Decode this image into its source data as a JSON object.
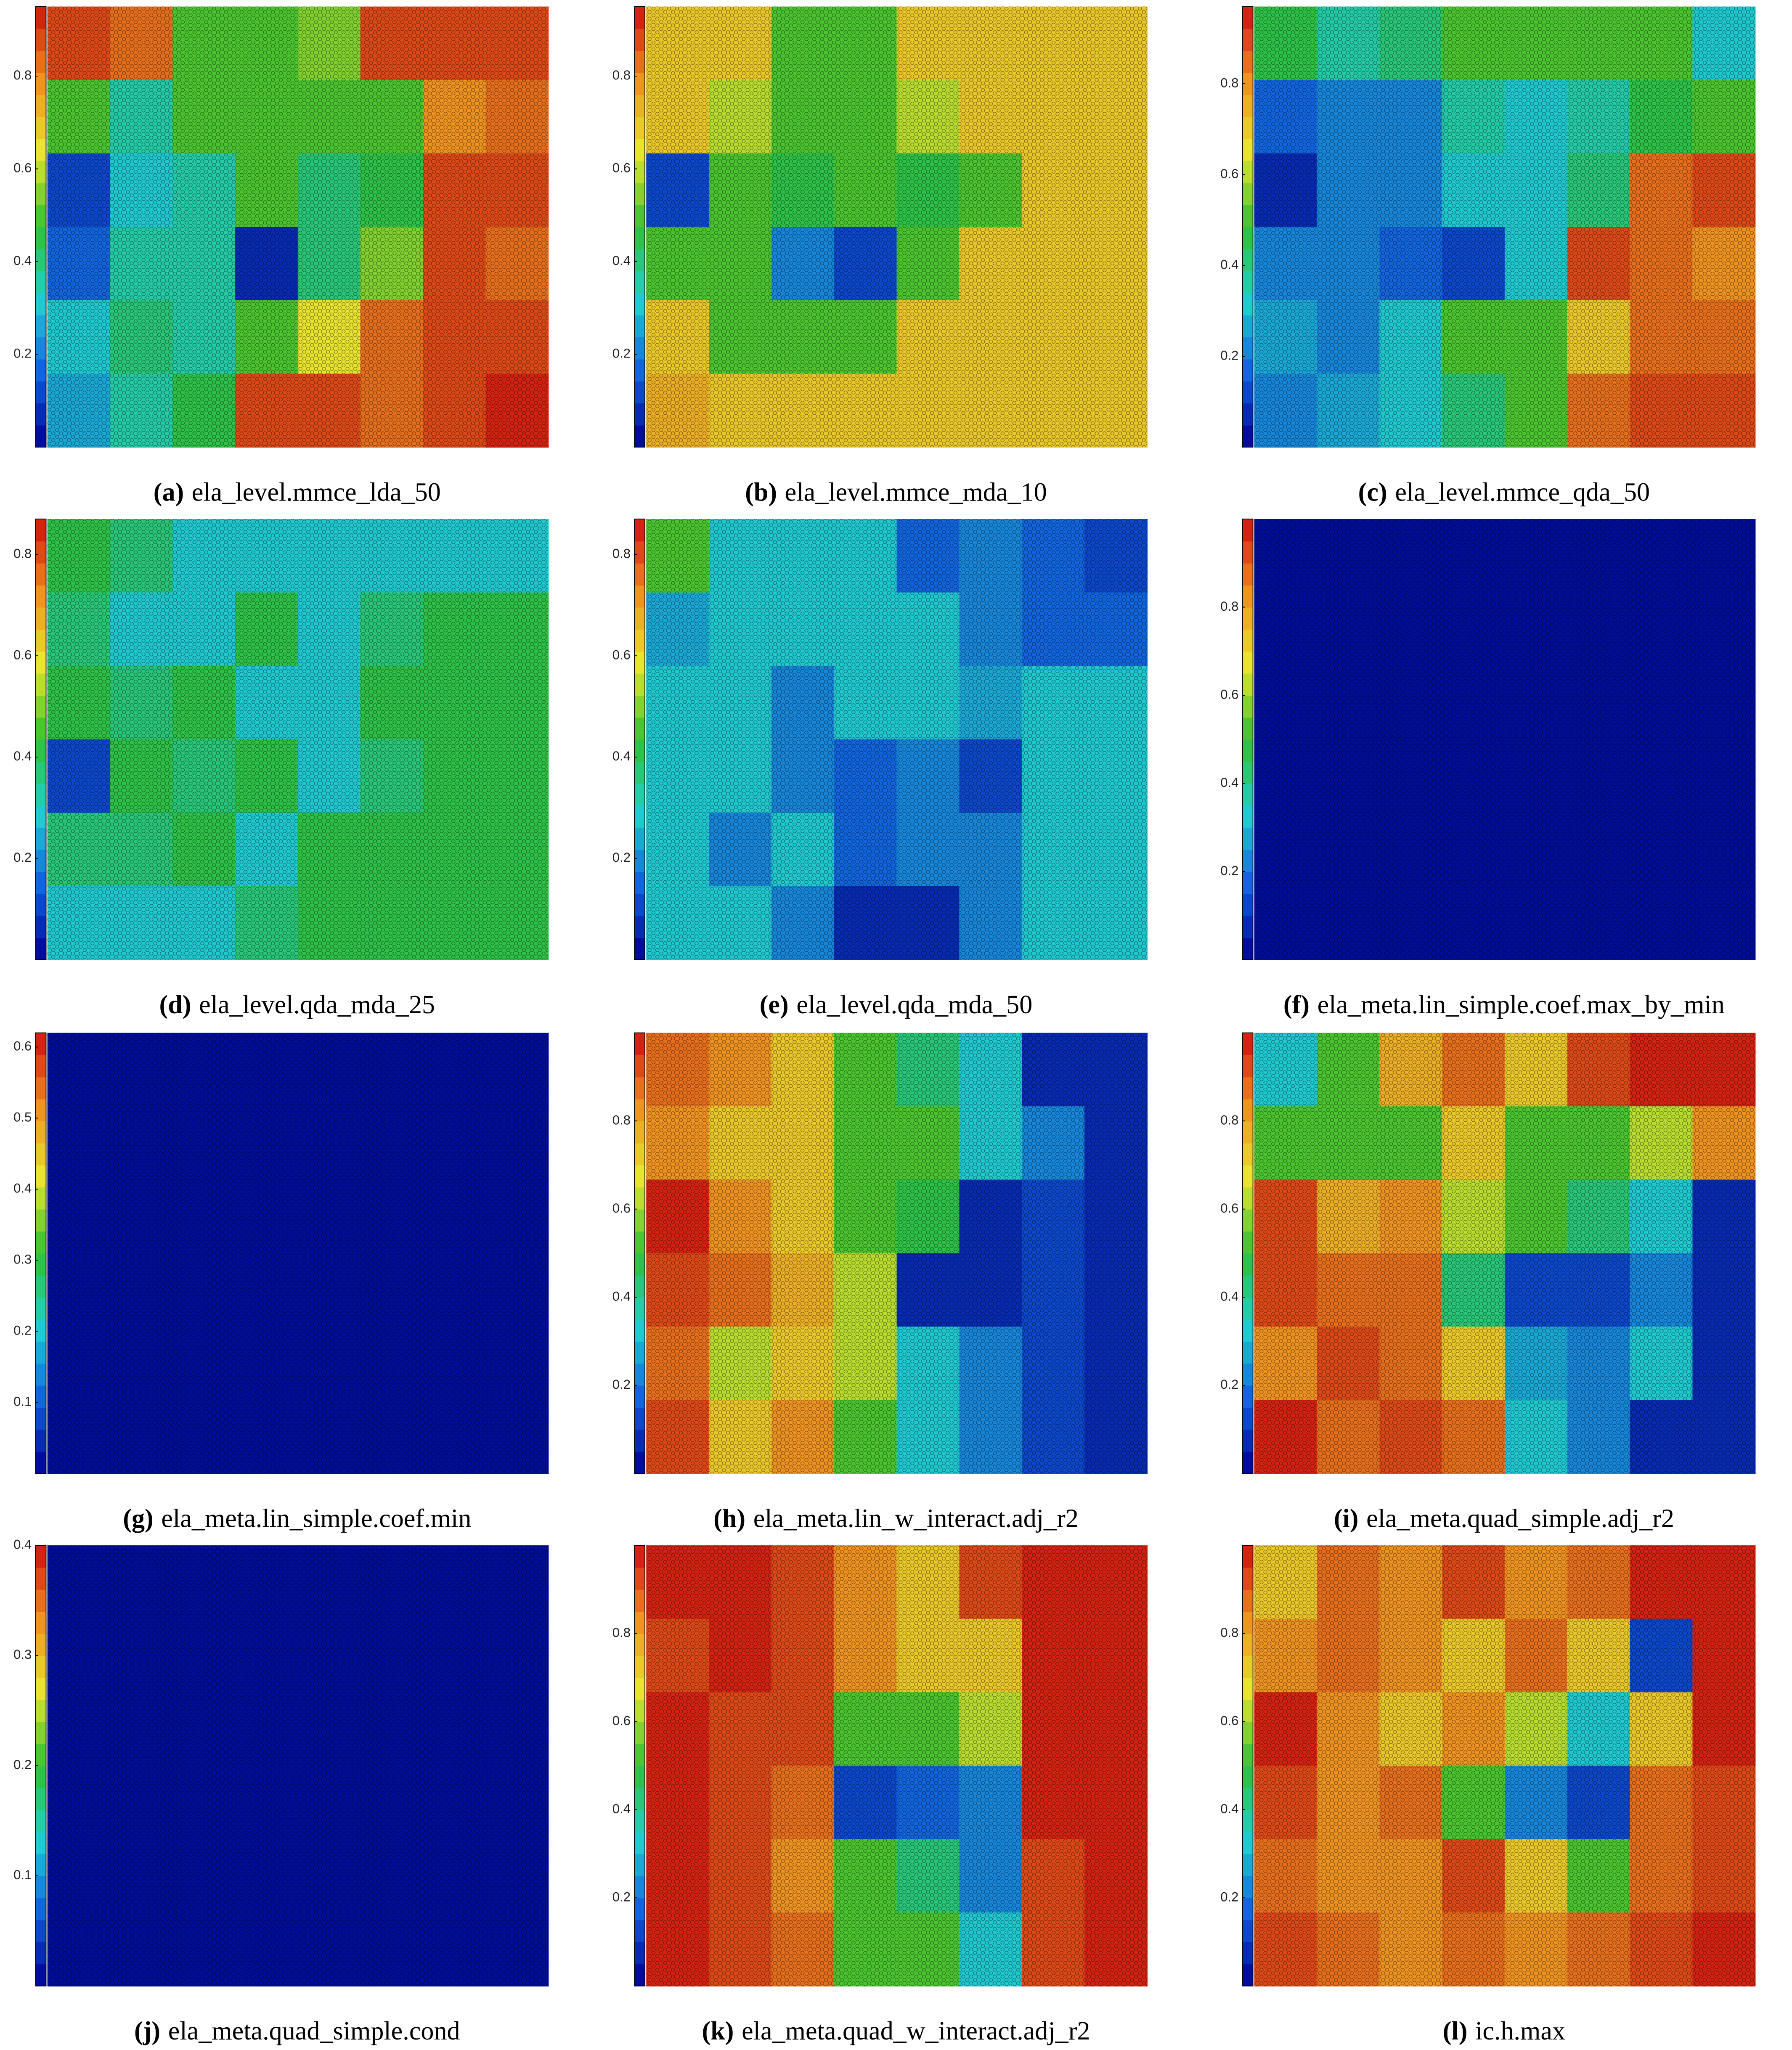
{
  "chart_data": [
    {
      "type": "heatmap",
      "label": "(a)",
      "title": "ela_level.mmce_lda_50",
      "ylim": [
        0,
        0.95
      ],
      "yticks": [
        0.2,
        0.4,
        0.6,
        0.8
      ],
      "color_steps": 20,
      "colormap": [
        "#00008f",
        "#1060e0",
        "#20d0d0",
        "#30c030",
        "#e8e830",
        "#f09020",
        "#d01010"
      ],
      "values": [
        [
          0.9,
          0.85,
          0.5,
          0.5,
          0.55,
          0.9,
          0.9,
          0.9
        ],
        [
          0.5,
          0.35,
          0.5,
          0.5,
          0.5,
          0.5,
          0.8,
          0.85
        ],
        [
          0.1,
          0.3,
          0.35,
          0.5,
          0.4,
          0.45,
          0.9,
          0.9
        ],
        [
          0.15,
          0.35,
          0.35,
          0.05,
          0.4,
          0.55,
          0.9,
          0.85
        ],
        [
          0.3,
          0.4,
          0.35,
          0.5,
          0.65,
          0.85,
          0.9,
          0.9
        ],
        [
          0.25,
          0.35,
          0.45,
          0.9,
          0.9,
          0.85,
          0.9,
          0.95
        ]
      ]
    },
    {
      "type": "heatmap",
      "label": "(b)",
      "title": "ela_level.mmce_mda_10",
      "ylim": [
        0,
        0.95
      ],
      "yticks": [
        0.2,
        0.4,
        0.6,
        0.8
      ],
      "color_steps": 20,
      "colormap": [
        "#00008f",
        "#1060e0",
        "#20d0d0",
        "#30c030",
        "#e8e830",
        "#f09020",
        "#d01010"
      ],
      "values": [
        [
          0.7,
          0.7,
          0.5,
          0.5,
          0.7,
          0.7,
          0.7,
          0.7
        ],
        [
          0.7,
          0.6,
          0.5,
          0.5,
          0.6,
          0.7,
          0.7,
          0.7
        ],
        [
          0.1,
          0.5,
          0.45,
          0.5,
          0.45,
          0.5,
          0.7,
          0.7
        ],
        [
          0.5,
          0.5,
          0.2,
          0.1,
          0.5,
          0.7,
          0.7,
          0.7
        ],
        [
          0.7,
          0.5,
          0.5,
          0.5,
          0.7,
          0.7,
          0.7,
          0.7
        ],
        [
          0.75,
          0.7,
          0.7,
          0.7,
          0.7,
          0.7,
          0.7,
          0.7
        ]
      ]
    },
    {
      "type": "heatmap",
      "label": "(c)",
      "title": "ela_level.mmce_qda_50",
      "ylim": [
        0,
        0.97
      ],
      "yticks": [
        0.2,
        0.4,
        0.6,
        0.8
      ],
      "color_steps": 20,
      "colormap": [
        "#00008f",
        "#1060e0",
        "#20d0d0",
        "#30c030",
        "#e8e830",
        "#f09020",
        "#d01010"
      ],
      "values": [
        [
          0.45,
          0.35,
          0.4,
          0.5,
          0.5,
          0.5,
          0.5,
          0.3
        ],
        [
          0.15,
          0.2,
          0.2,
          0.35,
          0.3,
          0.35,
          0.45,
          0.5
        ],
        [
          0.05,
          0.2,
          0.2,
          0.3,
          0.3,
          0.4,
          0.85,
          0.9
        ],
        [
          0.2,
          0.2,
          0.15,
          0.1,
          0.3,
          0.9,
          0.85,
          0.8
        ],
        [
          0.25,
          0.2,
          0.3,
          0.5,
          0.5,
          0.7,
          0.85,
          0.85
        ],
        [
          0.2,
          0.25,
          0.3,
          0.4,
          0.5,
          0.85,
          0.9,
          0.9
        ]
      ]
    },
    {
      "type": "heatmap",
      "label": "(d)",
      "title": "ela_level.qda_mda_25",
      "ylim": [
        0,
        0.87
      ],
      "yticks": [
        0.2,
        0.4,
        0.6,
        0.8
      ],
      "color_steps": 20,
      "colormap": [
        "#00008f",
        "#1060e0",
        "#20d0d0",
        "#30c030",
        "#e8e830",
        "#f09020",
        "#d01010"
      ],
      "values": [
        [
          0.4,
          0.35,
          0.3,
          0.3,
          0.3,
          0.3,
          0.3,
          0.3
        ],
        [
          0.35,
          0.3,
          0.3,
          0.4,
          0.3,
          0.35,
          0.4,
          0.4
        ],
        [
          0.4,
          0.35,
          0.4,
          0.3,
          0.3,
          0.4,
          0.4,
          0.4
        ],
        [
          0.1,
          0.4,
          0.35,
          0.4,
          0.3,
          0.35,
          0.4,
          0.4
        ],
        [
          0.35,
          0.35,
          0.4,
          0.3,
          0.4,
          0.4,
          0.4,
          0.4
        ],
        [
          0.3,
          0.3,
          0.3,
          0.35,
          0.4,
          0.4,
          0.4,
          0.4
        ]
      ]
    },
    {
      "type": "heatmap",
      "label": "(e)",
      "title": "ela_level.qda_mda_50",
      "ylim": [
        0,
        0.87
      ],
      "yticks": [
        0.2,
        0.4,
        0.6,
        0.8
      ],
      "color_steps": 20,
      "colormap": [
        "#00008f",
        "#1060e0",
        "#20d0d0",
        "#30c030",
        "#e8e830",
        "#f09020",
        "#d01010"
      ],
      "values": [
        [
          0.45,
          0.3,
          0.3,
          0.3,
          0.15,
          0.2,
          0.15,
          0.1
        ],
        [
          0.25,
          0.3,
          0.3,
          0.3,
          0.3,
          0.2,
          0.15,
          0.15
        ],
        [
          0.3,
          0.3,
          0.2,
          0.3,
          0.3,
          0.25,
          0.3,
          0.3
        ],
        [
          0.3,
          0.3,
          0.2,
          0.15,
          0.2,
          0.1,
          0.3,
          0.3
        ],
        [
          0.3,
          0.2,
          0.3,
          0.15,
          0.2,
          0.2,
          0.3,
          0.3
        ],
        [
          0.3,
          0.3,
          0.2,
          0.05,
          0.05,
          0.2,
          0.3,
          0.3
        ]
      ]
    },
    {
      "type": "heatmap",
      "label": "(f)",
      "title": "ela_meta.lin_simple.coef.max_by_min",
      "ylim": [
        0,
        1
      ],
      "yticks": [
        0.2,
        0.4,
        0.6,
        0.8
      ],
      "color_steps": 20,
      "colormap": [
        "#00008f",
        "#1060e0",
        "#20d0d0",
        "#30c030",
        "#e8e830",
        "#f09020",
        "#d01010"
      ],
      "values": [
        [
          0.02,
          0.02,
          0.02,
          0.02,
          0.02,
          0.02,
          0.02,
          0.02
        ],
        [
          0.02,
          0.02,
          0.02,
          0.02,
          0.02,
          0.02,
          0.02,
          0.02
        ],
        [
          0.02,
          0.02,
          0.02,
          0.02,
          0.02,
          0.02,
          0.02,
          0.02
        ],
        [
          0.02,
          0.02,
          0.02,
          0.02,
          0.02,
          0.02,
          0.02,
          0.02
        ],
        [
          0.02,
          0.02,
          0.02,
          0.02,
          0.02,
          0.02,
          0.02,
          0.02
        ],
        [
          0.02,
          0.02,
          0.02,
          0.02,
          0.02,
          0.02,
          0.02,
          0.02
        ]
      ]
    },
    {
      "type": "heatmap",
      "label": "(g)",
      "title": "ela_meta.lin_simple.coef.min",
      "ylim": [
        0,
        0.62
      ],
      "yticks": [
        0.1,
        0.2,
        0.3,
        0.4,
        0.5,
        0.6
      ],
      "color_steps": 20,
      "colormap": [
        "#00008f",
        "#1060e0",
        "#20d0d0",
        "#30c030",
        "#e8e830",
        "#f09020",
        "#d01010"
      ],
      "values": [
        [
          0.02,
          0.02,
          0.02,
          0.02,
          0.02,
          0.02,
          0.02,
          0.02
        ],
        [
          0.02,
          0.02,
          0.02,
          0.02,
          0.02,
          0.02,
          0.02,
          0.02
        ],
        [
          0.02,
          0.02,
          0.02,
          0.02,
          0.02,
          0.02,
          0.02,
          0.02
        ],
        [
          0.02,
          0.02,
          0.02,
          0.02,
          0.02,
          0.02,
          0.02,
          0.02
        ],
        [
          0.02,
          0.02,
          0.02,
          0.02,
          0.02,
          0.02,
          0.02,
          0.02
        ],
        [
          0.02,
          0.02,
          0.02,
          0.02,
          0.02,
          0.02,
          0.02,
          0.02
        ]
      ]
    },
    {
      "type": "heatmap",
      "label": "(h)",
      "title": "ela_meta.lin_w_interact.adj_r2",
      "ylim": [
        0,
        1
      ],
      "yticks": [
        0.2,
        0.4,
        0.6,
        0.8
      ],
      "color_steps": 20,
      "colormap": [
        "#00008f",
        "#1060e0",
        "#20d0d0",
        "#30c030",
        "#e8e830",
        "#f09020",
        "#d01010"
      ],
      "values": [
        [
          0.85,
          0.8,
          0.7,
          0.5,
          0.4,
          0.3,
          0.05,
          0.05
        ],
        [
          0.8,
          0.7,
          0.7,
          0.5,
          0.5,
          0.3,
          0.2,
          0.05
        ],
        [
          0.95,
          0.8,
          0.7,
          0.5,
          0.45,
          0.05,
          0.1,
          0.05
        ],
        [
          0.9,
          0.85,
          0.75,
          0.6,
          0.05,
          0.05,
          0.1,
          0.05
        ],
        [
          0.85,
          0.6,
          0.7,
          0.6,
          0.3,
          0.2,
          0.1,
          0.05
        ],
        [
          0.9,
          0.7,
          0.8,
          0.5,
          0.3,
          0.2,
          0.1,
          0.05
        ]
      ]
    },
    {
      "type": "heatmap",
      "label": "(i)",
      "title": "ela_meta.quad_simple.adj_r2",
      "ylim": [
        0,
        1
      ],
      "yticks": [
        0.2,
        0.4,
        0.6,
        0.8
      ],
      "color_steps": 20,
      "colormap": [
        "#00008f",
        "#1060e0",
        "#20d0d0",
        "#30c030",
        "#e8e830",
        "#f09020",
        "#d01010"
      ],
      "values": [
        [
          0.3,
          0.5,
          0.75,
          0.85,
          0.7,
          0.9,
          0.95,
          0.95
        ],
        [
          0.5,
          0.5,
          0.5,
          0.7,
          0.5,
          0.5,
          0.6,
          0.8
        ],
        [
          0.9,
          0.75,
          0.8,
          0.6,
          0.5,
          0.4,
          0.3,
          0.05
        ],
        [
          0.9,
          0.85,
          0.85,
          0.4,
          0.1,
          0.1,
          0.2,
          0.05
        ],
        [
          0.8,
          0.9,
          0.85,
          0.7,
          0.25,
          0.2,
          0.3,
          0.05
        ],
        [
          0.95,
          0.85,
          0.9,
          0.85,
          0.3,
          0.2,
          0.05,
          0.05
        ]
      ]
    },
    {
      "type": "heatmap",
      "label": "(j)",
      "title": "ela_meta.quad_simple.cond",
      "ylim": [
        0,
        0.4
      ],
      "yticks": [
        0.1,
        0.2,
        0.3,
        0.4
      ],
      "color_steps": 20,
      "colormap": [
        "#00008f",
        "#1060e0",
        "#20d0d0",
        "#30c030",
        "#e8e830",
        "#f09020",
        "#d01010"
      ],
      "values": [
        [
          0.01,
          0.01,
          0.01,
          0.01,
          0.01,
          0.01,
          0.01,
          0.01
        ],
        [
          0.01,
          0.01,
          0.01,
          0.01,
          0.01,
          0.01,
          0.01,
          0.01
        ],
        [
          0.01,
          0.01,
          0.01,
          0.01,
          0.01,
          0.01,
          0.01,
          0.01
        ],
        [
          0.01,
          0.01,
          0.01,
          0.01,
          0.01,
          0.01,
          0.01,
          0.01
        ],
        [
          0.01,
          0.01,
          0.01,
          0.01,
          0.01,
          0.01,
          0.01,
          0.01
        ],
        [
          0.01,
          0.01,
          0.01,
          0.01,
          0.01,
          0.01,
          0.01,
          0.01
        ]
      ]
    },
    {
      "type": "heatmap",
      "label": "(k)",
      "title": "ela_meta.quad_w_interact.adj_r2",
      "ylim": [
        0,
        1
      ],
      "yticks": [
        0.2,
        0.4,
        0.6,
        0.8
      ],
      "color_steps": 20,
      "colormap": [
        "#00008f",
        "#1060e0",
        "#20d0d0",
        "#30c030",
        "#e8e830",
        "#f09020",
        "#d01010"
      ],
      "values": [
        [
          0.95,
          0.95,
          0.9,
          0.8,
          0.7,
          0.9,
          0.95,
          0.95
        ],
        [
          0.9,
          0.95,
          0.9,
          0.8,
          0.7,
          0.7,
          0.95,
          0.95
        ],
        [
          0.95,
          0.9,
          0.9,
          0.5,
          0.5,
          0.6,
          0.95,
          0.95
        ],
        [
          0.95,
          0.9,
          0.85,
          0.1,
          0.15,
          0.2,
          0.95,
          0.95
        ],
        [
          0.95,
          0.9,
          0.8,
          0.5,
          0.4,
          0.2,
          0.9,
          0.95
        ],
        [
          0.95,
          0.9,
          0.85,
          0.5,
          0.5,
          0.3,
          0.9,
          0.95
        ]
      ]
    },
    {
      "type": "heatmap",
      "label": "(l)",
      "title": "ic.h.max",
      "ylim": [
        0,
        1
      ],
      "yticks": [
        0.2,
        0.4,
        0.6,
        0.8
      ],
      "color_steps": 20,
      "colormap": [
        "#00008f",
        "#1060e0",
        "#20d0d0",
        "#30c030",
        "#e8e830",
        "#f09020",
        "#d01010"
      ],
      "values": [
        [
          0.7,
          0.85,
          0.8,
          0.9,
          0.8,
          0.85,
          0.95,
          0.95
        ],
        [
          0.8,
          0.85,
          0.8,
          0.7,
          0.85,
          0.7,
          0.1,
          0.95
        ],
        [
          0.95,
          0.8,
          0.7,
          0.8,
          0.6,
          0.3,
          0.7,
          0.95
        ],
        [
          0.9,
          0.8,
          0.85,
          0.5,
          0.2,
          0.1,
          0.85,
          0.9
        ],
        [
          0.85,
          0.8,
          0.8,
          0.9,
          0.7,
          0.5,
          0.85,
          0.9
        ],
        [
          0.9,
          0.85,
          0.8,
          0.85,
          0.8,
          0.85,
          0.9,
          0.95
        ]
      ]
    }
  ]
}
